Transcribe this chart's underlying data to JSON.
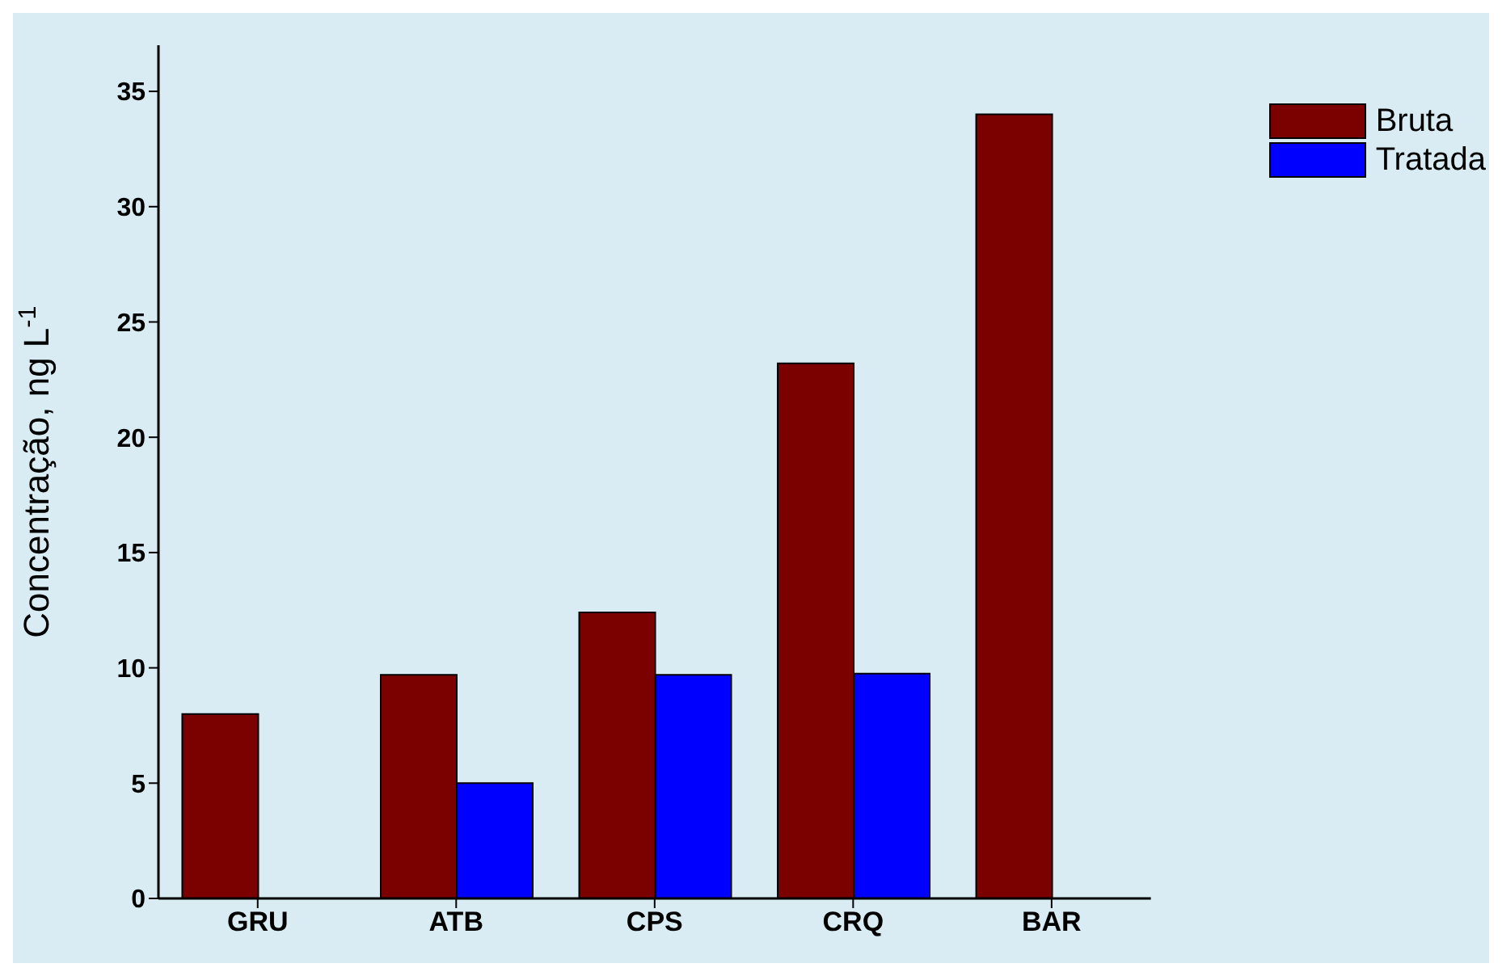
{
  "chart_data": {
    "type": "bar",
    "ylabel": "Concentração, ng L$^{-1}$",
    "categories": [
      "GRU",
      "ATB",
      "CPS",
      "CRQ",
      "BAR"
    ],
    "series": [
      {
        "name": "Bruta",
        "color": "#7b0000",
        "values": [
          8.0,
          9.7,
          12.4,
          23.2,
          34.0
        ]
      },
      {
        "name": "Tratada",
        "color": "#0000ff",
        "values": [
          null,
          5.0,
          9.7,
          9.75,
          null
        ]
      }
    ],
    "ylim": [
      0,
      37
    ],
    "yticks": [
      0,
      5,
      10,
      15,
      20,
      25,
      30,
      35
    ],
    "grid": false,
    "legend": "top right"
  }
}
